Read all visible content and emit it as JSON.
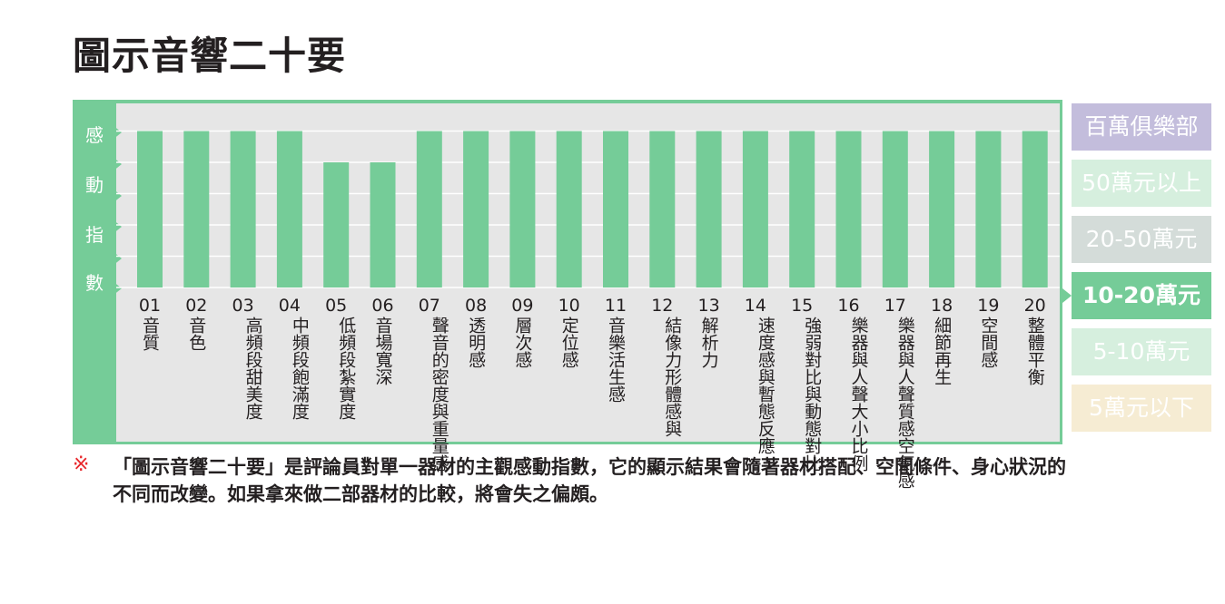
{
  "page_title": "圖示音響二十要",
  "chart_data": {
    "type": "bar",
    "title": "圖示音響二十要",
    "ylabel": "感動指數",
    "ylim": [
      0,
      5
    ],
    "grid": true,
    "categories": [
      {
        "num": "01",
        "label": "音質"
      },
      {
        "num": "02",
        "label": "音色"
      },
      {
        "num": "03",
        "label": "高頻段,甜美度"
      },
      {
        "num": "04",
        "label": "中頻段,飽滿度"
      },
      {
        "num": "05",
        "label": "低頻段,紮實度"
      },
      {
        "num": "06",
        "label": "音場寬深"
      },
      {
        "num": "07",
        "label": "聲音的密度,與重量感"
      },
      {
        "num": "08",
        "label": "透明感"
      },
      {
        "num": "09",
        "label": "層次感"
      },
      {
        "num": "10",
        "label": "定位感"
      },
      {
        "num": "11",
        "label": "音樂活生感"
      },
      {
        "num": "12",
        "label": "結像力,形體感與"
      },
      {
        "num": "13",
        "label": "解析力"
      },
      {
        "num": "14",
        "label": "速度感與,暫態反應"
      },
      {
        "num": "15",
        "label": "強弱對比與,動態對比"
      },
      {
        "num": "16",
        "label": "樂器與人聲,大小比例"
      },
      {
        "num": "17",
        "label": "樂器與人聲,質感空氣感"
      },
      {
        "num": "18",
        "label": "細節再生"
      },
      {
        "num": "19",
        "label": "空間感"
      },
      {
        "num": "20",
        "label": "整體平衡"
      }
    ],
    "values": [
      5,
      5,
      5,
      5,
      4,
      4,
      5,
      5,
      5,
      5,
      5,
      5,
      5,
      5,
      5,
      5,
      5,
      5,
      5,
      5
    ],
    "bar_color": "#75cc98",
    "legend_placement": "right"
  },
  "legend": [
    {
      "label": "百萬俱樂部",
      "color": "#c3bddc",
      "active": false
    },
    {
      "label": "50萬元以上",
      "color": "#d6efde",
      "active": false
    },
    {
      "label": "20-50萬元",
      "color": "#d4dcd9",
      "active": false
    },
    {
      "label": "10-20萬元",
      "color": "#75cc98",
      "active": true
    },
    {
      "label": "5-10萬元",
      "color": "#d6efde",
      "active": false
    },
    {
      "label": "5萬元以下",
      "color": "#f6ecd3",
      "active": false
    }
  ],
  "note": {
    "mark": "※",
    "text": "「圖示音響二十要」是評論員對單一器材的主觀感動指數，它的顯示結果會隨著器材搭配、空間條件、身心狀況的不同而改變。如果拿來做二部器材的比較，將會失之偏頗。"
  }
}
